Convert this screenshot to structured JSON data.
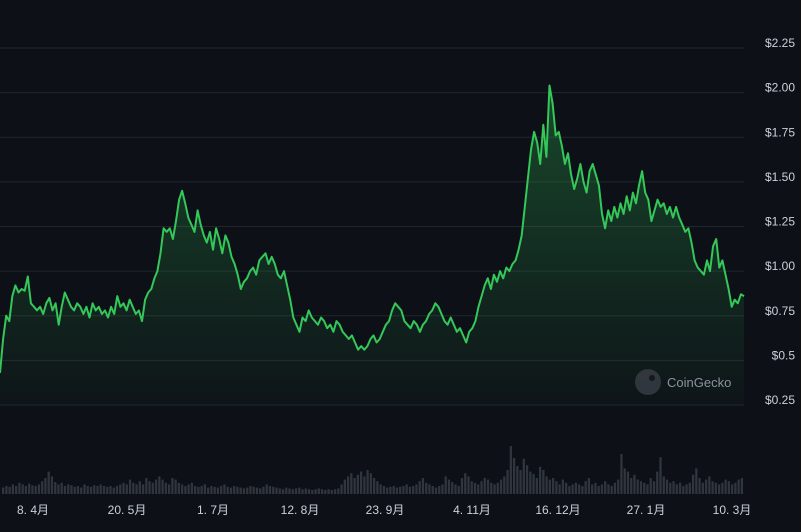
{
  "chart_data": {
    "type": "area",
    "title": "",
    "xlabel": "",
    "ylabel": "",
    "ylim": [
      0.25,
      2.25
    ],
    "y_ticks": [
      {
        "value": 2.25,
        "label": "$2.25"
      },
      {
        "value": 2.0,
        "label": "$2.00"
      },
      {
        "value": 1.75,
        "label": "$1.75"
      },
      {
        "value": 1.5,
        "label": "$1.50"
      },
      {
        "value": 1.25,
        "label": "$1.25"
      },
      {
        "value": 1.0,
        "label": "$1.00"
      },
      {
        "value": 0.75,
        "label": "$0.75"
      },
      {
        "value": 0.5,
        "label": "$0.5"
      },
      {
        "value": 0.25,
        "label": "$0.25"
      }
    ],
    "x_tick_labels": [
      "8. 4月",
      "20. 5月",
      "1. 7月",
      "12. 8月",
      "23. 9月",
      "4. 11月",
      "16. 12月",
      "27. 1月",
      "10. 3月"
    ],
    "grid": true,
    "colors": {
      "line": "#34c759",
      "grid": "#21262d",
      "volume": "#30363d",
      "background": "#0d1117"
    },
    "watermark": "CoinGecko",
    "series": [
      {
        "values": [
          0.43,
          0.62,
          0.75,
          0.72,
          0.86,
          0.92,
          0.88,
          0.9,
          0.89,
          0.97,
          0.82,
          0.8,
          0.78,
          0.8,
          0.76,
          0.82,
          0.85,
          0.78,
          0.82,
          0.7,
          0.8,
          0.88,
          0.84,
          0.8,
          0.78,
          0.82,
          0.8,
          0.76,
          0.8,
          0.74,
          0.82,
          0.78,
          0.8,
          0.76,
          0.78,
          0.74,
          0.8,
          0.76,
          0.86,
          0.8,
          0.82,
          0.78,
          0.84,
          0.8,
          0.76,
          0.78,
          0.72,
          0.84,
          0.88,
          0.9,
          0.96,
          1.0,
          1.1,
          1.24,
          1.22,
          1.24,
          1.18,
          1.28,
          1.4,
          1.45,
          1.38,
          1.3,
          1.26,
          1.22,
          1.34,
          1.26,
          1.2,
          1.16,
          1.22,
          1.12,
          1.24,
          1.18,
          1.1,
          1.2,
          1.16,
          1.08,
          1.04,
          0.98,
          0.9,
          0.94,
          0.96,
          1.0,
          1.02,
          0.98,
          1.06,
          1.08,
          1.1,
          1.04,
          1.08,
          1.04,
          0.98,
          0.96,
          1.0,
          0.92,
          0.84,
          0.74,
          0.7,
          0.66,
          0.74,
          0.72,
          0.78,
          0.74,
          0.72,
          0.7,
          0.74,
          0.72,
          0.68,
          0.7,
          0.66,
          0.72,
          0.7,
          0.66,
          0.64,
          0.62,
          0.64,
          0.6,
          0.56,
          0.58,
          0.56,
          0.58,
          0.62,
          0.64,
          0.6,
          0.62,
          0.66,
          0.7,
          0.72,
          0.78,
          0.82,
          0.8,
          0.78,
          0.72,
          0.7,
          0.68,
          0.72,
          0.7,
          0.66,
          0.7,
          0.72,
          0.76,
          0.78,
          0.82,
          0.8,
          0.76,
          0.72,
          0.7,
          0.74,
          0.7,
          0.66,
          0.68,
          0.64,
          0.6,
          0.66,
          0.68,
          0.72,
          0.8,
          0.86,
          0.92,
          0.96,
          0.9,
          0.98,
          0.94,
          1.0,
          0.96,
          1.02,
          1.0,
          1.04,
          1.06,
          1.12,
          1.2,
          1.36,
          1.52,
          1.68,
          1.78,
          1.72,
          1.6,
          1.82,
          1.64,
          2.04,
          1.94,
          1.76,
          1.78,
          1.7,
          1.6,
          1.66,
          1.54,
          1.46,
          1.52,
          1.6,
          1.5,
          1.44,
          1.56,
          1.6,
          1.54,
          1.48,
          1.32,
          1.24,
          1.34,
          1.28,
          1.36,
          1.3,
          1.38,
          1.32,
          1.42,
          1.34,
          1.44,
          1.38,
          1.48,
          1.56,
          1.44,
          1.4,
          1.28,
          1.34,
          1.4,
          1.36,
          1.38,
          1.32,
          1.36,
          1.3,
          1.36,
          1.3,
          1.26,
          1.22,
          1.24,
          1.16,
          1.06,
          1.02,
          1.0,
          0.98,
          1.06,
          1.0,
          1.14,
          1.18,
          1.02,
          1.06,
          0.98,
          0.9,
          0.8,
          0.84,
          0.82,
          0.87,
          0.86
        ]
      }
    ],
    "volume": [
      0.08,
      0.1,
      0.09,
      0.12,
      0.1,
      0.14,
      0.12,
      0.1,
      0.13,
      0.11,
      0.1,
      0.12,
      0.16,
      0.2,
      0.28,
      0.22,
      0.15,
      0.12,
      0.14,
      0.1,
      0.12,
      0.11,
      0.09,
      0.1,
      0.08,
      0.12,
      0.1,
      0.09,
      0.11,
      0.1,
      0.12,
      0.1,
      0.09,
      0.1,
      0.08,
      0.1,
      0.12,
      0.14,
      0.12,
      0.18,
      0.14,
      0.12,
      0.16,
      0.12,
      0.2,
      0.16,
      0.14,
      0.18,
      0.22,
      0.18,
      0.14,
      0.12,
      0.2,
      0.18,
      0.14,
      0.12,
      0.1,
      0.12,
      0.14,
      0.1,
      0.09,
      0.1,
      0.12,
      0.08,
      0.1,
      0.09,
      0.08,
      0.1,
      0.12,
      0.09,
      0.08,
      0.1,
      0.09,
      0.08,
      0.07,
      0.08,
      0.1,
      0.09,
      0.08,
      0.07,
      0.09,
      0.12,
      0.1,
      0.09,
      0.08,
      0.07,
      0.06,
      0.08,
      0.07,
      0.06,
      0.07,
      0.08,
      0.06,
      0.07,
      0.06,
      0.05,
      0.06,
      0.07,
      0.06,
      0.05,
      0.06,
      0.05,
      0.06,
      0.07,
      0.12,
      0.18,
      0.22,
      0.26,
      0.2,
      0.24,
      0.28,
      0.22,
      0.3,
      0.26,
      0.2,
      0.16,
      0.12,
      0.1,
      0.08,
      0.09,
      0.1,
      0.08,
      0.09,
      0.1,
      0.12,
      0.09,
      0.1,
      0.12,
      0.16,
      0.2,
      0.14,
      0.12,
      0.1,
      0.08,
      0.1,
      0.12,
      0.22,
      0.18,
      0.15,
      0.12,
      0.1,
      0.2,
      0.26,
      0.22,
      0.16,
      0.14,
      0.12,
      0.16,
      0.2,
      0.18,
      0.14,
      0.12,
      0.14,
      0.18,
      0.22,
      0.3,
      0.6,
      0.45,
      0.35,
      0.3,
      0.44,
      0.36,
      0.28,
      0.25,
      0.2,
      0.34,
      0.3,
      0.22,
      0.18,
      0.2,
      0.16,
      0.12,
      0.18,
      0.14,
      0.1,
      0.12,
      0.14,
      0.12,
      0.1,
      0.16,
      0.2,
      0.12,
      0.14,
      0.1,
      0.12,
      0.16,
      0.12,
      0.1,
      0.14,
      0.18,
      0.5,
      0.32,
      0.28,
      0.2,
      0.24,
      0.18,
      0.16,
      0.14,
      0.12,
      0.2,
      0.16,
      0.28,
      0.46,
      0.22,
      0.18,
      0.14,
      0.16,
      0.12,
      0.14,
      0.1,
      0.12,
      0.14,
      0.24,
      0.32,
      0.2,
      0.14,
      0.18,
      0.22,
      0.16,
      0.14,
      0.12,
      0.14,
      0.18,
      0.16,
      0.12,
      0.14,
      0.18,
      0.2
    ]
  }
}
